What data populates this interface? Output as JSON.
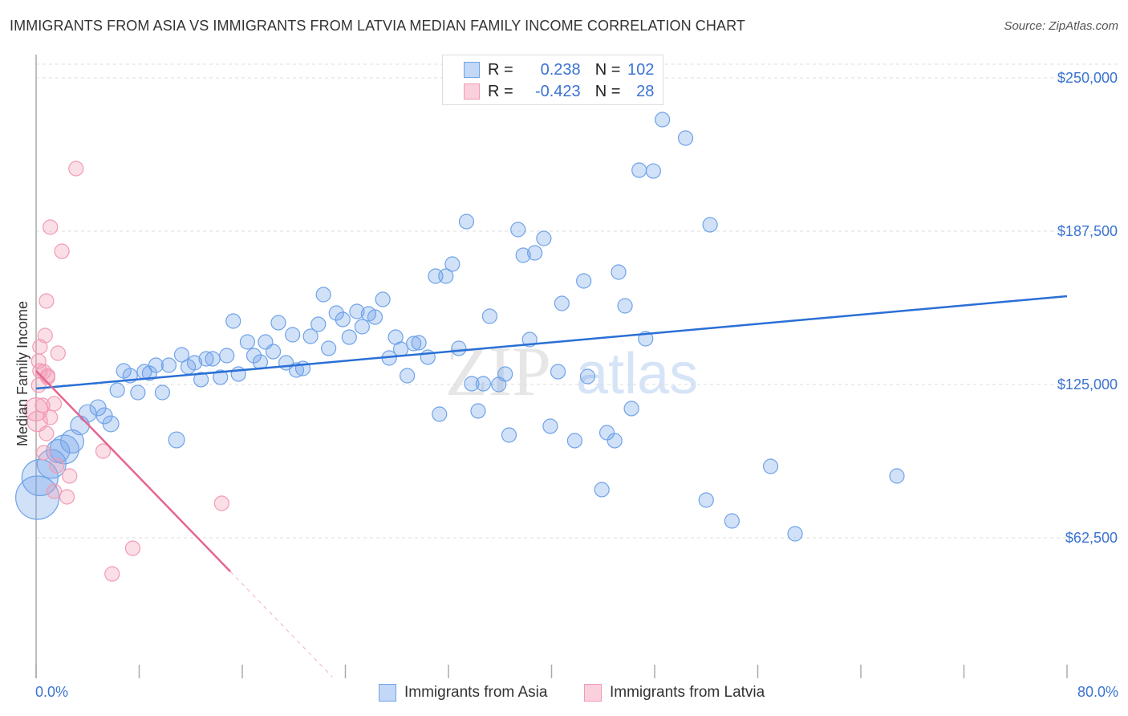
{
  "title": "IMMIGRANTS FROM ASIA VS IMMIGRANTS FROM LATVIA MEDIAN FAMILY INCOME CORRELATION CHART",
  "source": "Source: ZipAtlas.com",
  "watermark": "ZIPatlas",
  "legend": {
    "rows": [
      {
        "r_label": "R =",
        "r_value": "0.238",
        "n_label": "N =",
        "n_value": "102"
      },
      {
        "r_label": "R =",
        "r_value": "-0.423",
        "n_label": "N =",
        "n_value": "28"
      }
    ]
  },
  "chart_data": {
    "type": "scatter",
    "title": "IMMIGRANTS FROM ASIA VS IMMIGRANTS FROM LATVIA MEDIAN FAMILY INCOME CORRELATION CHART",
    "xlabel": "",
    "ylabel": "Median Family Income",
    "xlim": [
      0,
      80
    ],
    "ylim": [
      5250,
      259500
    ],
    "x_tick_labels": [
      "0.0%",
      "80.0%"
    ],
    "y_ticks": [
      250000,
      187500,
      125000,
      62500
    ],
    "y_tick_labels": [
      "$250,000",
      "$187,500",
      "$125,000",
      "$62,500"
    ],
    "grid": true,
    "legend_placement": "bottom",
    "colors": {
      "asia": "#6fa3e8",
      "latvia": "#f29ab4",
      "asia_line": "#2a6fd6",
      "latvia_line": "#e5668f",
      "text_blue": "#3b73d1"
    },
    "series": [
      {
        "name": "Immigrants from Asia",
        "key": "asia",
        "trend": {
          "x": [
            0,
            80
          ],
          "y": [
            123370,
            161000
          ]
        },
        "points": [
          [
            0.1,
            78870,
            3
          ],
          [
            0.3,
            87050,
            2.5
          ],
          [
            1.2,
            92620,
            2
          ],
          [
            2.2,
            98510,
            2
          ],
          [
            2.8,
            101780,
            1.6
          ],
          [
            1.7,
            97850,
            1.6
          ],
          [
            3.4,
            108330,
            1.3
          ],
          [
            4.0,
            113240,
            1.2
          ],
          [
            4.8,
            115530,
            1.1
          ],
          [
            5.3,
            112250,
            1.1
          ],
          [
            5.8,
            108980,
            1.1
          ],
          [
            6.3,
            122720,
            1
          ],
          [
            6.8,
            130570,
            1
          ],
          [
            7.3,
            128610,
            1
          ],
          [
            7.9,
            121740,
            1
          ],
          [
            8.4,
            130240,
            1
          ],
          [
            8.8,
            129590,
            1
          ],
          [
            9.3,
            132860,
            1
          ],
          [
            9.8,
            121740,
            1
          ],
          [
            10.3,
            132860,
            1
          ],
          [
            10.9,
            102430,
            1.1
          ],
          [
            11.3,
            137120,
            1
          ],
          [
            11.8,
            132210,
            1
          ],
          [
            12.3,
            133840,
            1
          ],
          [
            12.8,
            126980,
            1
          ],
          [
            13.2,
            135480,
            1
          ],
          [
            13.7,
            135480,
            1
          ],
          [
            14.3,
            127960,
            1
          ],
          [
            14.8,
            136790,
            1
          ],
          [
            15.3,
            150860,
            1
          ],
          [
            15.7,
            129270,
            1
          ],
          [
            16.4,
            142350,
            1
          ],
          [
            16.9,
            136790,
            1
          ],
          [
            17.4,
            134170,
            1
          ],
          [
            17.8,
            142350,
            1
          ],
          [
            18.4,
            138420,
            1
          ],
          [
            18.8,
            150210,
            1
          ],
          [
            19.4,
            133840,
            1
          ],
          [
            19.9,
            145300,
            1
          ],
          [
            20.2,
            130900,
            1
          ],
          [
            20.7,
            131550,
            1
          ],
          [
            21.3,
            144640,
            1
          ],
          [
            21.9,
            149550,
            1
          ],
          [
            22.3,
            161660,
            1
          ],
          [
            22.7,
            139740,
            1
          ],
          [
            23.3,
            154130,
            1
          ],
          [
            23.8,
            151520,
            1
          ],
          [
            24.3,
            144310,
            1
          ],
          [
            24.9,
            154790,
            1
          ],
          [
            25.3,
            148570,
            1
          ],
          [
            25.8,
            153800,
            1
          ],
          [
            26.3,
            152490,
            1
          ],
          [
            26.9,
            159690,
            1
          ],
          [
            27.4,
            135810,
            1
          ],
          [
            27.9,
            144310,
            1
          ],
          [
            28.3,
            139410,
            1
          ],
          [
            28.8,
            128610,
            1
          ],
          [
            29.3,
            141700,
            1
          ],
          [
            29.7,
            142030,
            1
          ],
          [
            30.4,
            136140,
            1
          ],
          [
            31.3,
            112910,
            1
          ],
          [
            31.0,
            169180,
            1
          ],
          [
            31.8,
            169180,
            1
          ],
          [
            32.3,
            174090,
            1
          ],
          [
            32.8,
            139740,
            1
          ],
          [
            33.4,
            191430,
            1
          ],
          [
            33.8,
            125330,
            1
          ],
          [
            34.3,
            114220,
            1
          ],
          [
            34.7,
            125330,
            1
          ],
          [
            35.2,
            152820,
            1
          ],
          [
            35.9,
            125010,
            1
          ],
          [
            36.4,
            129270,
            1
          ],
          [
            36.7,
            104390,
            1
          ],
          [
            37.4,
            188160,
            1
          ],
          [
            37.8,
            177690,
            1
          ],
          [
            38.3,
            143330,
            1
          ],
          [
            38.7,
            178670,
            1
          ],
          [
            39.4,
            184560,
            1
          ],
          [
            39.9,
            108000,
            1
          ],
          [
            40.5,
            130240,
            1
          ],
          [
            40.8,
            158060,
            1
          ],
          [
            41.8,
            102110,
            1
          ],
          [
            42.5,
            167220,
            1
          ],
          [
            42.8,
            128280,
            1
          ],
          [
            43.9,
            82150,
            1
          ],
          [
            44.3,
            105380,
            1
          ],
          [
            44.9,
            102110,
            1
          ],
          [
            45.2,
            170820,
            1
          ],
          [
            45.7,
            157080,
            1
          ],
          [
            46.2,
            115200,
            1
          ],
          [
            46.8,
            212370,
            1
          ],
          [
            47.3,
            143660,
            1
          ],
          [
            47.9,
            212040,
            1
          ],
          [
            48.6,
            232990,
            1
          ],
          [
            50.4,
            225460,
            1
          ],
          [
            52.0,
            77890,
            1
          ],
          [
            52.3,
            190120,
            1
          ],
          [
            54.0,
            69380,
            1
          ],
          [
            57.0,
            91630,
            1
          ],
          [
            58.9,
            64150,
            1
          ],
          [
            66.8,
            87710,
            1
          ]
        ]
      },
      {
        "name": "Immigrants from Latvia",
        "key": "latvia",
        "trend": {
          "x": [
            0,
            15.07
          ],
          "y": [
            130570,
            48770
          ],
          "dashed_to_x": 23.0
        },
        "points": [
          [
            3.1,
            213030,
            1
          ],
          [
            1.1,
            189140,
            1
          ],
          [
            2.0,
            179320,
            1
          ],
          [
            0.8,
            159040,
            1
          ],
          [
            0.7,
            144970,
            1
          ],
          [
            1.7,
            137770,
            1
          ],
          [
            0.3,
            140390,
            1
          ],
          [
            0.2,
            134500,
            1
          ],
          [
            0.3,
            130570,
            1
          ],
          [
            0.6,
            130240,
            1
          ],
          [
            0.9,
            128610,
            1
          ],
          [
            0.5,
            116510,
            1
          ],
          [
            1.4,
            117160,
            1
          ],
          [
            1.1,
            111590,
            1
          ],
          [
            0.1,
            109960,
            1.4
          ],
          [
            0.8,
            105050,
            1
          ],
          [
            0.6,
            97200,
            1
          ],
          [
            5.2,
            97850,
            1
          ],
          [
            1.6,
            91960,
            1
          ],
          [
            2.6,
            87710,
            1
          ],
          [
            1.4,
            81490,
            1
          ],
          [
            2.4,
            79200,
            1
          ],
          [
            14.4,
            76580,
            1
          ],
          [
            7.5,
            58250,
            1
          ],
          [
            5.9,
            47780,
            1
          ],
          [
            0.2,
            124680,
            1
          ],
          [
            0.0,
            114870,
            1.6
          ],
          [
            0.9,
            127960,
            1
          ]
        ]
      }
    ]
  }
}
